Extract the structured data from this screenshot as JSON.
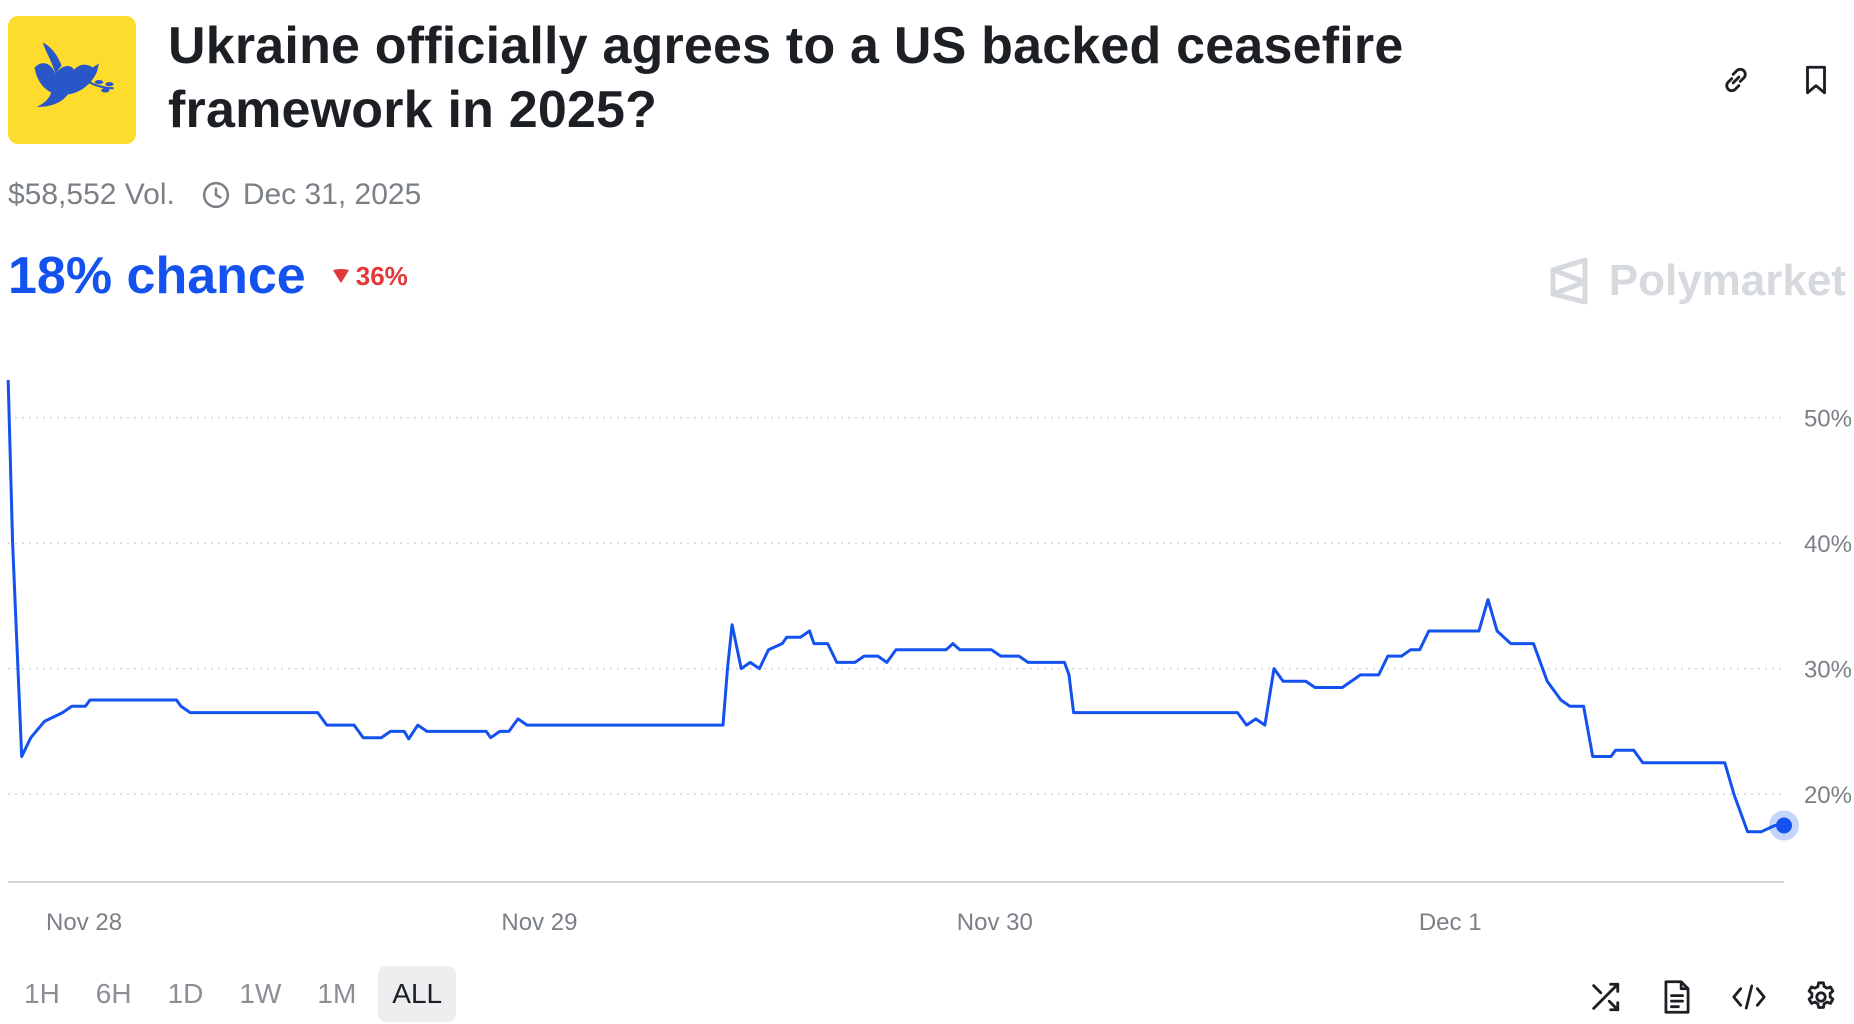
{
  "market": {
    "title": "Ukraine officially agrees to a US backed ceasefire framework in 2025?",
    "logo_icon": "dove-icon",
    "volume": "$58,552 Vol.",
    "end_date": "Dec 31, 2025",
    "chance": "18% chance",
    "change": "36%",
    "change_direction": "down",
    "brand": "Polymarket"
  },
  "header_actions": [
    {
      "icon": "link-icon"
    },
    {
      "icon": "bookmark-icon"
    }
  ],
  "ranges": {
    "items": [
      "1H",
      "6H",
      "1D",
      "1W",
      "1M",
      "ALL"
    ],
    "active": "ALL"
  },
  "tools": [
    {
      "icon": "shuffle-icon"
    },
    {
      "icon": "document-icon"
    },
    {
      "icon": "code-icon"
    },
    {
      "icon": "settings-icon"
    }
  ],
  "colors": {
    "line": "#1452f0",
    "accent": "#1452f0",
    "negative": "#e23838",
    "logo_bg": "#fddc2e",
    "grid": "#d4d7db"
  },
  "chart_data": {
    "type": "line",
    "title": "",
    "xlabel": "",
    "ylabel": "",
    "x_ticks": [
      {
        "label": "Nov 28",
        "day": 0.167
      },
      {
        "label": "Nov 29",
        "day": 1.167
      },
      {
        "label": "Nov 30",
        "day": 2.167
      },
      {
        "label": "Dec 1",
        "day": 3.167
      }
    ],
    "y_ticks": [
      20,
      30,
      40,
      50
    ],
    "y_tick_suffix": "%",
    "xlim": [
      0,
      3.9
    ],
    "ylim": [
      13,
      53
    ],
    "grid": true,
    "series": [
      {
        "points": [
          [
            0.0,
            53.5
          ],
          [
            0.01,
            40.0
          ],
          [
            0.03,
            23.0
          ],
          [
            0.05,
            24.5
          ],
          [
            0.08,
            25.8
          ],
          [
            0.12,
            26.5
          ],
          [
            0.14,
            27.0
          ],
          [
            0.17,
            27.0
          ],
          [
            0.18,
            27.5
          ],
          [
            0.37,
            27.5
          ],
          [
            0.38,
            27.0
          ],
          [
            0.4,
            26.5
          ],
          [
            0.68,
            26.5
          ],
          [
            0.7,
            25.5
          ],
          [
            0.76,
            25.5
          ],
          [
            0.78,
            24.5
          ],
          [
            0.82,
            24.5
          ],
          [
            0.84,
            25.0
          ],
          [
            0.87,
            25.0
          ],
          [
            0.88,
            24.4
          ],
          [
            0.9,
            25.5
          ],
          [
            0.92,
            25.0
          ],
          [
            1.05,
            25.0
          ],
          [
            1.06,
            24.5
          ],
          [
            1.08,
            25.0
          ],
          [
            1.1,
            25.0
          ],
          [
            1.12,
            26.0
          ],
          [
            1.14,
            25.5
          ],
          [
            1.57,
            25.5
          ],
          [
            1.58,
            30.0
          ],
          [
            1.59,
            33.5
          ],
          [
            1.61,
            30.0
          ],
          [
            1.63,
            30.5
          ],
          [
            1.65,
            30.0
          ],
          [
            1.67,
            31.5
          ],
          [
            1.7,
            32.0
          ],
          [
            1.71,
            32.5
          ],
          [
            1.74,
            32.5
          ],
          [
            1.76,
            33.0
          ],
          [
            1.77,
            32.0
          ],
          [
            1.8,
            32.0
          ],
          [
            1.82,
            30.5
          ],
          [
            1.86,
            30.5
          ],
          [
            1.88,
            31.0
          ],
          [
            1.91,
            31.0
          ],
          [
            1.93,
            30.5
          ],
          [
            1.95,
            31.5
          ],
          [
            2.06,
            31.5
          ],
          [
            2.075,
            32.0
          ],
          [
            2.09,
            31.5
          ],
          [
            2.16,
            31.5
          ],
          [
            2.18,
            31.0
          ],
          [
            2.22,
            31.0
          ],
          [
            2.24,
            30.5
          ],
          [
            2.32,
            30.5
          ],
          [
            2.33,
            29.5
          ],
          [
            2.34,
            26.5
          ],
          [
            2.7,
            26.5
          ],
          [
            2.72,
            25.5
          ],
          [
            2.74,
            26.0
          ],
          [
            2.76,
            25.5
          ],
          [
            2.78,
            30.0
          ],
          [
            2.8,
            29.0
          ],
          [
            2.85,
            29.0
          ],
          [
            2.87,
            28.5
          ],
          [
            2.93,
            28.5
          ],
          [
            2.97,
            29.5
          ],
          [
            3.01,
            29.5
          ],
          [
            3.03,
            31.0
          ],
          [
            3.06,
            31.0
          ],
          [
            3.08,
            31.5
          ],
          [
            3.1,
            31.5
          ],
          [
            3.12,
            33.0
          ],
          [
            3.23,
            33.0
          ],
          [
            3.25,
            35.5
          ],
          [
            3.27,
            33.0
          ],
          [
            3.3,
            32.0
          ],
          [
            3.35,
            32.0
          ],
          [
            3.38,
            29.0
          ],
          [
            3.41,
            27.5
          ],
          [
            3.43,
            27.0
          ],
          [
            3.46,
            27.0
          ],
          [
            3.48,
            23.0
          ],
          [
            3.52,
            23.0
          ],
          [
            3.53,
            23.5
          ],
          [
            3.57,
            23.5
          ],
          [
            3.59,
            22.5
          ],
          [
            3.77,
            22.5
          ],
          [
            3.79,
            20.0
          ],
          [
            3.82,
            17.0
          ],
          [
            3.85,
            17.0
          ],
          [
            3.88,
            17.5
          ],
          [
            3.9,
            17.5
          ]
        ]
      }
    ]
  }
}
